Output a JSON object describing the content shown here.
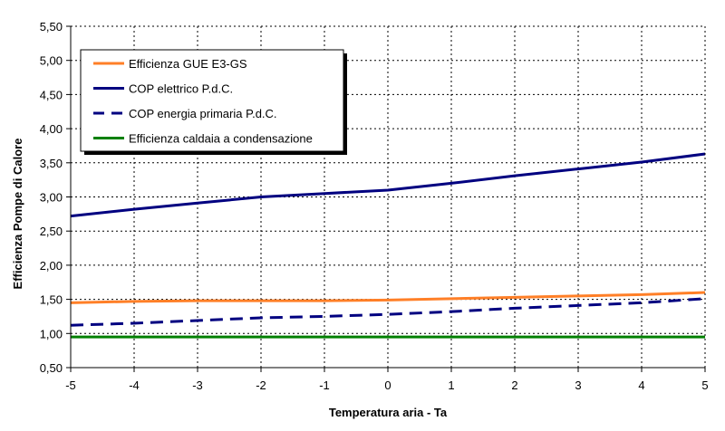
{
  "chart_data": {
    "type": "line",
    "xlabel": "Temperatura aria - Ta",
    "ylabel": "Efficienza Pompe di Calore",
    "xlim": [
      -5,
      5
    ],
    "ylim": [
      0.5,
      5.5
    ],
    "x_ticks": [
      "-5",
      "-4",
      "-3",
      "-2",
      "-1",
      "0",
      "1",
      "2",
      "3",
      "4",
      "5"
    ],
    "y_ticks": [
      "0,50",
      "1,00",
      "1,50",
      "2,00",
      "2,50",
      "3,00",
      "3,50",
      "4,00",
      "4,50",
      "5,00",
      "5,50"
    ],
    "grid": true,
    "legend_position": "top-left",
    "series": [
      {
        "name": "Efficienza GUE E3-GS",
        "color": "#FF7F27",
        "dash": "solid",
        "x": [
          -5,
          -4,
          -3,
          -2,
          -1,
          0,
          1,
          2,
          3,
          4,
          5
        ],
        "values": [
          1.45,
          1.47,
          1.48,
          1.48,
          1.48,
          1.49,
          1.51,
          1.53,
          1.55,
          1.57,
          1.6
        ]
      },
      {
        "name": "COP elettrico P.d.C.",
        "color": "#000080",
        "dash": "solid",
        "x": [
          -5,
          -4,
          -3,
          -2,
          -1,
          0,
          1,
          2,
          3,
          4,
          5
        ],
        "values": [
          2.72,
          2.82,
          2.91,
          3.0,
          3.05,
          3.1,
          3.2,
          3.31,
          3.41,
          3.51,
          3.63
        ]
      },
      {
        "name": "COP energia primaria P.d.C.",
        "color": "#000080",
        "dash": "dashed",
        "x": [
          -5,
          -4,
          -3,
          -2,
          -1,
          0,
          1,
          2,
          3,
          4,
          5
        ],
        "values": [
          1.12,
          1.15,
          1.19,
          1.23,
          1.25,
          1.28,
          1.32,
          1.37,
          1.41,
          1.45,
          1.51
        ]
      },
      {
        "name": "Efficienza caldaia a condensazione",
        "color": "#008000",
        "dash": "solid",
        "x": [
          -5,
          5
        ],
        "values": [
          0.95,
          0.95
        ]
      }
    ]
  }
}
